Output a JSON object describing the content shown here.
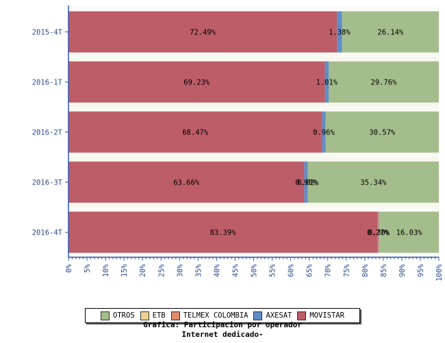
{
  "chart_data": {
    "type": "bar",
    "orientation": "horizontal",
    "stacked": true,
    "percent_axis": true,
    "categories": [
      "2015-4T",
      "2016-1T",
      "2016-2T",
      "2016-3T",
      "2016-4T"
    ],
    "series": [
      {
        "name": "MOVISTAR",
        "color": "#bd5d68",
        "values": [
          72.49,
          69.23,
          68.47,
          63.66,
          83.39
        ],
        "labels": [
          "72.49%",
          "69.23%",
          "68.47%",
          "63.66%",
          "83.39%"
        ]
      },
      {
        "name": "AXESAT",
        "color": "#5f8dc6",
        "values": [
          1.38,
          1.01,
          0.96,
          0.98,
          0.27
        ],
        "labels": [
          "1.38%",
          "1.01%",
          "0.96%",
          "0.98%",
          "0.27%"
        ]
      },
      {
        "name": "TELMEX COLOMBIA",
        "color": "#e08a6a",
        "values": [
          0.0,
          0.0,
          0.0,
          0.02,
          0.3
        ],
        "labels": [
          "",
          "",
          "",
          "0.02%",
          "0.30%"
        ]
      },
      {
        "name": "ETB",
        "color": "#f0d090",
        "values": [
          0.0,
          0.0,
          0.0,
          0.0,
          0.01
        ],
        "labels": [
          "",
          "",
          "",
          "",
          ""
        ]
      },
      {
        "name": "OTROS",
        "color": "#a4bd8c",
        "values": [
          26.14,
          29.76,
          30.57,
          35.34,
          16.03
        ],
        "labels": [
          "26.14%",
          "29.76%",
          "30.57%",
          "35.34%",
          "16.03%"
        ]
      }
    ],
    "x_ticks": [
      "0%",
      "5%",
      "10%",
      "15%",
      "20%",
      "25%",
      "30%",
      "35%",
      "40%",
      "45%",
      "50%",
      "55%",
      "60%",
      "65%",
      "70%",
      "75%",
      "80%",
      "85%",
      "90%",
      "95%",
      "100%"
    ],
    "xlim": [
      0,
      100
    ],
    "legend_order": [
      "OTROS",
      "ETB",
      "TELMEX COLOMBIA",
      "AXESAT",
      "MOVISTAR"
    ],
    "legend_position": "bottom-center",
    "grid": true,
    "axis_color": "#3355aa",
    "tick_label_color": "#2a4f8f"
  },
  "caption": {
    "line1": "Grafica: Participacion por operador",
    "line2": "Internet dedicado-"
  }
}
